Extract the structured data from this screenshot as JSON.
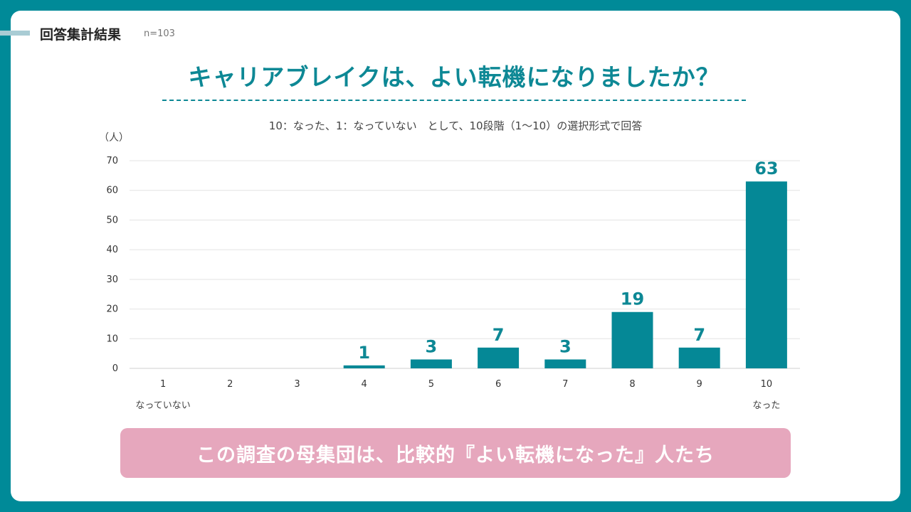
{
  "header": {
    "section_title": "回答集計結果",
    "sample_size": "n=103"
  },
  "title": "キャリアブレイクは、よい転機になりましたか？",
  "subtitle": "10：なった、1：なっていない　として、10段階（1～10）の選択形式で回答",
  "note": "この調査の母集団は、比較的『よい転機になった』人たち",
  "colors": {
    "background": "#008a98",
    "accent": "#0d8895",
    "bar": "#058896",
    "note_box": "#e6a7bd"
  },
  "chart_data": {
    "type": "bar",
    "categories": [
      "1",
      "2",
      "3",
      "4",
      "5",
      "6",
      "7",
      "8",
      "9",
      "10"
    ],
    "values": [
      0,
      0,
      0,
      1,
      3,
      7,
      3,
      19,
      7,
      63
    ],
    "data_labels": [
      "",
      "",
      "",
      "1",
      "3",
      "7",
      "3",
      "19",
      "7",
      "63"
    ],
    "ylabel": "（人）",
    "ylim": [
      0,
      70
    ],
    "yticks": [
      0,
      10,
      20,
      30,
      40,
      50,
      60,
      70
    ],
    "grid": true,
    "category_annotations": [
      {
        "category": "1",
        "text": "なっていない"
      },
      {
        "category": "10",
        "text": "なった"
      }
    ]
  }
}
